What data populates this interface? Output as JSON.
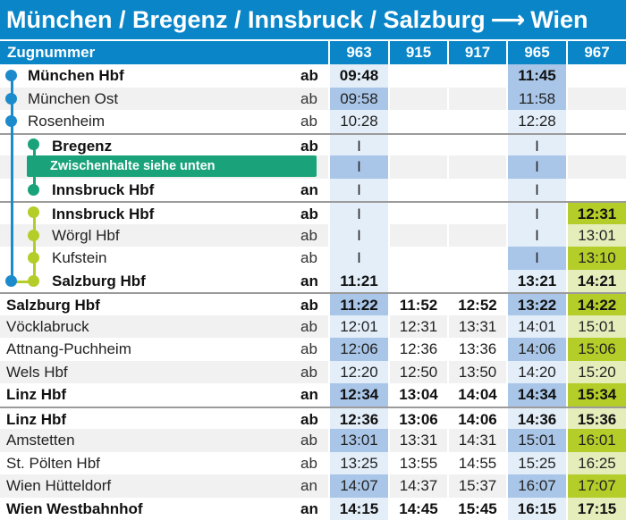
{
  "title": {
    "route": "München / Bregenz / Innsbruck / Salzburg",
    "arrow": "⟶",
    "destination": "Wien"
  },
  "header": {
    "label": "Zugnummer",
    "trains": [
      "963",
      "915",
      "917",
      "965",
      "967"
    ]
  },
  "note": "Zwischenhalte siehe unten",
  "rows": [
    {
      "station": "München Hbf",
      "type": "ab",
      "times": [
        "09:48",
        "",
        "",
        "11:45",
        ""
      ]
    },
    {
      "station": "München Ost",
      "type": "ab",
      "times": [
        "09:58",
        "",
        "",
        "11:58",
        ""
      ]
    },
    {
      "station": "Rosenheim",
      "type": "ab",
      "times": [
        "10:28",
        "",
        "",
        "12:28",
        ""
      ]
    },
    {
      "station": "Bregenz",
      "type": "ab",
      "times": [
        "I",
        "",
        "",
        "I",
        ""
      ]
    },
    {
      "station": "",
      "type": "",
      "times": [
        "I",
        "",
        "",
        "I",
        ""
      ]
    },
    {
      "station": "Innsbruck Hbf",
      "type": "an",
      "times": [
        "I",
        "",
        "",
        "I",
        ""
      ]
    },
    {
      "station": "Innsbruck Hbf",
      "type": "ab",
      "times": [
        "I",
        "",
        "",
        "I",
        "12:31"
      ]
    },
    {
      "station": "Wörgl Hbf",
      "type": "ab",
      "times": [
        "I",
        "",
        "",
        "I",
        "13:01"
      ]
    },
    {
      "station": "Kufstein",
      "type": "ab",
      "times": [
        "I",
        "",
        "",
        "I",
        "13:10"
      ]
    },
    {
      "station": "Salzburg Hbf",
      "type": "an",
      "times": [
        "11:21",
        "",
        "",
        "13:21",
        "14:21"
      ]
    },
    {
      "station": "Salzburg Hbf",
      "type": "ab",
      "times": [
        "11:22",
        "11:52",
        "12:52",
        "13:22",
        "14:22"
      ]
    },
    {
      "station": "Vöcklabruck",
      "type": "ab",
      "times": [
        "12:01",
        "12:31",
        "13:31",
        "14:01",
        "15:01"
      ]
    },
    {
      "station": "Attnang-Puchheim",
      "type": "ab",
      "times": [
        "12:06",
        "12:36",
        "13:36",
        "14:06",
        "15:06"
      ]
    },
    {
      "station": "Wels Hbf",
      "type": "ab",
      "times": [
        "12:20",
        "12:50",
        "13:50",
        "14:20",
        "15:20"
      ]
    },
    {
      "station": "Linz Hbf",
      "type": "an",
      "times": [
        "12:34",
        "13:04",
        "14:04",
        "14:34",
        "15:34"
      ]
    },
    {
      "station": "Linz Hbf",
      "type": "ab",
      "times": [
        "12:36",
        "13:06",
        "14:06",
        "14:36",
        "15:36"
      ]
    },
    {
      "station": "Amstetten",
      "type": "ab",
      "times": [
        "13:01",
        "13:31",
        "14:31",
        "15:01",
        "16:01"
      ]
    },
    {
      "station": "St. Pölten Hbf",
      "type": "ab",
      "times": [
        "13:25",
        "13:55",
        "14:55",
        "15:25",
        "16:25"
      ]
    },
    {
      "station": "Wien Hütteldorf",
      "type": "an",
      "times": [
        "14:07",
        "14:37",
        "15:37",
        "16:07",
        "17:07"
      ]
    },
    {
      "station": "Wien Westbahnhof",
      "type": "an",
      "times": [
        "14:15",
        "14:45",
        "15:45",
        "16:15",
        "17:15"
      ]
    }
  ],
  "colors": {
    "header_blue": "#0a86c8",
    "line_blue": "#1c8bcc",
    "line_teal": "#1aa37a",
    "line_lime": "#b5cd28",
    "cell_blue_dark": "#a9c6e8",
    "cell_blue_light": "#e3eef9",
    "cell_green_dark": "#b5cd28",
    "cell_green_light": "#e5edbb"
  }
}
